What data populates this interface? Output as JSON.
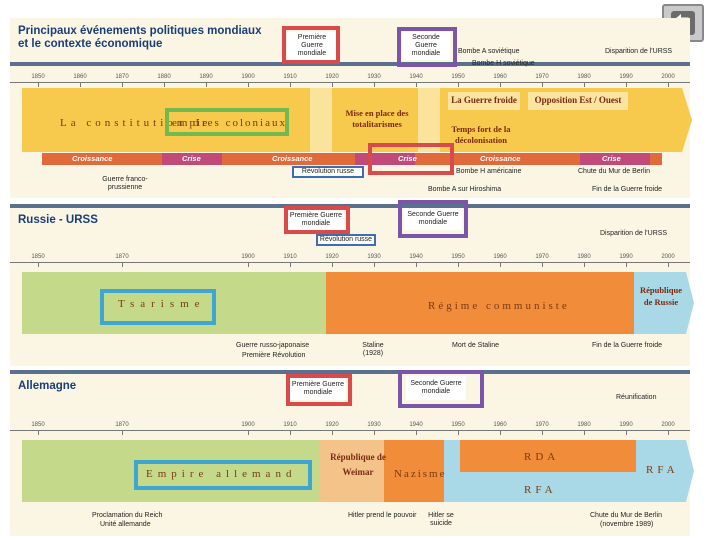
{
  "colors": {
    "accent_red": "#d94a4a",
    "accent_purple": "#7a55a8",
    "accent_green": "#74b850",
    "accent_blue": "#3b6fb5",
    "accent_teal": "#3ea6d0",
    "header_line": "#5b6f8e",
    "title_blue": "#1a3d7a"
  },
  "nav": {
    "icon": "return-arrow-icon"
  },
  "scale_years": [
    "1850",
    "1860",
    "1870",
    "1880",
    "1890",
    "1900",
    "1910",
    "1920",
    "1930",
    "1940",
    "1950",
    "1960",
    "1970",
    "1980",
    "1990",
    "2000"
  ],
  "scale_years_short": [
    "1850",
    "1870",
    "1900",
    "1910",
    "1920",
    "1930",
    "1940",
    "1950",
    "1960",
    "1970",
    "1980",
    "1990",
    "2000"
  ],
  "wars": {
    "ww1": "Première Guerre mondiale",
    "ww2": "Seconde Guerre mondiale"
  },
  "section1": {
    "title_line1": "Principaux événements politiques mondiaux",
    "title_line2": "et le contexte économique",
    "top_annotations": {
      "bombe_a_sov": "Bombe A soviétique",
      "bombe_h_sov": "Bombe H soviétique",
      "urss_end": "Disparition de l'URSS"
    },
    "band_colonial_prefix": "La constitution de",
    "band_colonial_highlight": "empires coloniaux",
    "totalitarismes": "Mise en place des totalitarismes",
    "guerre_froide": "La Guerre froide",
    "opposition": "Opposition Est / Ouest",
    "decolonisation": "Temps fort de la décolonisation",
    "phases": [
      "Croissance",
      "Crise",
      "Croissance",
      "Crise",
      "Croissance",
      "Crise"
    ],
    "revolution": "Révolution russe",
    "bottom_annotations": {
      "franco_prussienne": "Guerre franco-prussienne",
      "bombe_h_am": "Bombe H américaine",
      "bombe_a_hiro": "Bombe A sur Hiroshima",
      "mur_berlin": "Chute du Mur de Berlin",
      "fin_guerre_froide": "Fin de la Guerre froide"
    }
  },
  "section2": {
    "title": "Russie - URSS",
    "revolution": "Révolution russe",
    "urss_end": "Disparition de l'URSS",
    "tsarisme": "Tsarisme",
    "regime": "Régime communiste",
    "republique": "République de Russie",
    "bottom_annotations": {
      "russo_japonaise": "Guerre russo-japonaise",
      "premiere_revolution": "Première Révolution",
      "staline": "Staline (1928)",
      "mort_staline": "Mort de Staline",
      "fin_guerre_froide": "Fin de la Guerre froide"
    }
  },
  "section3": {
    "title": "Allemagne",
    "reunification": "Réunification",
    "empire": "Empire allemand",
    "weimar": "République de Weimar",
    "nazisme": "Nazisme",
    "rda": "RDA",
    "rfa": "RFA",
    "bottom_annotations": {
      "proclamation": "Proclamation du Reich",
      "unite": "Unité allemande",
      "hitler_pouvoir": "Hitler prend le pouvoir",
      "hitler_suicide": "Hitler se suicide",
      "mur_berlin": "Chute du Mur de Berlin",
      "novembre": "(novembre 1989)"
    }
  }
}
